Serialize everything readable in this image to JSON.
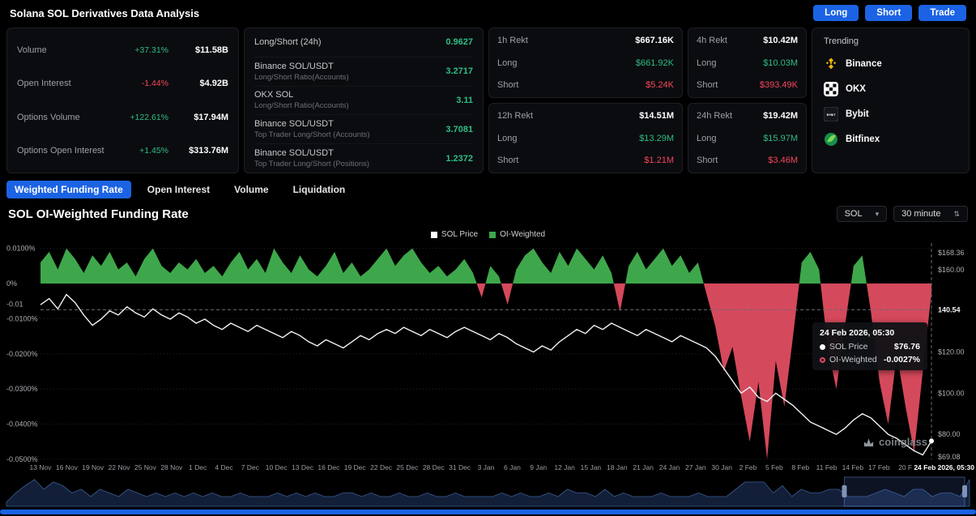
{
  "header": {
    "title": "Solana SOL Derivatives Data Analysis",
    "buttons": [
      {
        "label": "Long"
      },
      {
        "label": "Short"
      },
      {
        "label": "Trade"
      }
    ]
  },
  "stats": {
    "market": [
      {
        "label": "Volume",
        "change": "+37.31%",
        "dir": "up",
        "value": "$11.58B"
      },
      {
        "label": "Open Interest",
        "change": "-1.44%",
        "dir": "down",
        "value": "$4.92B"
      },
      {
        "label": "Options Volume",
        "change": "+122.61%",
        "dir": "up",
        "value": "$17.94M"
      },
      {
        "label": "Options Open Interest",
        "change": "+1.45%",
        "dir": "up",
        "value": "$313.76M"
      }
    ],
    "ratios": [
      {
        "label": "Long/Short (24h)",
        "sub": "",
        "value": "0.9627"
      },
      {
        "label": "Binance SOL/USDT",
        "sub": "Long/Short Ratio(Accounts)",
        "value": "3.2717"
      },
      {
        "label": "OKX SOL",
        "sub": "Long/Short Ratio(Accounts)",
        "value": "3.11"
      },
      {
        "label": "Binance SOL/USDT",
        "sub": "Top Trader Long/Short (Accounts)",
        "value": "3.7081"
      },
      {
        "label": "Binance SOL/USDT",
        "sub": "Top Trader Long/Short (Positions)",
        "value": "1.2372"
      }
    ],
    "rekt_labels": {
      "long": "Long",
      "short": "Short"
    },
    "rekt": [
      {
        "title": "1h Rekt",
        "total": "$667.16K",
        "long": "$661.92K",
        "short": "$5.24K"
      },
      {
        "title": "12h Rekt",
        "total": "$14.51M",
        "long": "$13.29M",
        "short": "$1.21M"
      },
      {
        "title": "4h Rekt",
        "total": "$10.42M",
        "long": "$10.03M",
        "short": "$393.49K"
      },
      {
        "title": "24h Rekt",
        "total": "$19.42M",
        "long": "$15.97M",
        "short": "$3.46M"
      }
    ],
    "trending": {
      "title": "Trending",
      "items": [
        {
          "name": "Binance"
        },
        {
          "name": "OKX"
        },
        {
          "name": "Bybit"
        },
        {
          "name": "Bitfinex"
        }
      ]
    }
  },
  "tabs": [
    {
      "label": "Weighted Funding Rate",
      "active": true
    },
    {
      "label": "Open Interest",
      "active": false
    },
    {
      "label": "Volume",
      "active": false
    },
    {
      "label": "Liquidation",
      "active": false
    }
  ],
  "section": {
    "title": "SOL OI-Weighted Funding Rate",
    "symbol_select": "SOL",
    "interval_select": "30 minute"
  },
  "legend": [
    {
      "label": "SOL Price",
      "color": "#ffffff"
    },
    {
      "label": "OI-Weighted",
      "color": "#3fa74b"
    }
  ],
  "tooltip": {
    "date": "24 Feb 2026, 05:30",
    "rows": [
      {
        "label": "SOL Price",
        "value": "$76.76",
        "color": "#ffffff",
        "hollow": false
      },
      {
        "label": "OI-Weighted",
        "value": "-0.0027%",
        "color": "#e8475f",
        "hollow": true
      }
    ]
  },
  "watermark": "coinglass",
  "colors": {
    "accent_blue": "#1b63e4",
    "green_text": "#2ebd85",
    "red_text": "#f6465d",
    "chart_green": "#3fa74b",
    "chart_red": "#d5495c",
    "price_line": "#f2f2f2"
  },
  "chart_data": {
    "type": "line+area",
    "title": "SOL OI-Weighted Funding Rate",
    "interval": "30 minute",
    "symbol": "SOL",
    "ylim_left_pct": [
      -0.05,
      0.01
    ],
    "ylim_right_usd": [
      69.08,
      168.36
    ],
    "grid": true,
    "legend_position": "top-center",
    "x_tick_labels": [
      "13 Nov",
      "16 Nov",
      "19 Nov",
      "22 Nov",
      "25 Nov",
      "28 Nov",
      "1 Dec",
      "4 Dec",
      "7 Dec",
      "10 Dec",
      "13 Dec",
      "16 Dec",
      "19 Dec",
      "22 Dec",
      "25 Dec",
      "28 Dec",
      "31 Dec",
      "3 Jan",
      "6 Jan",
      "9 Jan",
      "12 Jan",
      "15 Jan",
      "18 Jan",
      "21 Jan",
      "24 Jan",
      "27 Jan",
      "30 Jan",
      "2 Feb",
      "5 Feb",
      "8 Feb",
      "11 Feb",
      "14 Feb",
      "17 Feb",
      "20 F",
      "24 Feb 2026, 05:30"
    ],
    "y_left_tick_values": [
      0.01,
      0,
      -0.01,
      -0.02,
      -0.03,
      -0.04,
      -0.05
    ],
    "y_left_tick_labels": [
      "0.0100%",
      "0%",
      "-0.0100%",
      "-0.0200%",
      "-0.0300%",
      "-0.0400%",
      "-0.0500%"
    ],
    "y_right_ticks": [
      {
        "label": "$168.36",
        "value": 168.36
      },
      {
        "label": "$160.00",
        "value": 160
      },
      {
        "label": "$120.00",
        "value": 120
      },
      {
        "label": "$100.00",
        "value": 100
      },
      {
        "label": "$80.00",
        "value": 80
      },
      {
        "label": "$69.08",
        "value": 69.08
      }
    ],
    "current_markers": {
      "funding_label": "-0.01",
      "price_label": "140.54",
      "price_value": 140.54
    },
    "series": [
      {
        "name": "SOL Price",
        "type": "line",
        "color": "#f2f2f2",
        "values": [
          143,
          146,
          141,
          148,
          144,
          138,
          133,
          136,
          140,
          138,
          142,
          139,
          137,
          141,
          138,
          136,
          139,
          137,
          134,
          136,
          133,
          131,
          134,
          132,
          130,
          133,
          131,
          129,
          127,
          130,
          128,
          125,
          123,
          126,
          124,
          122,
          125,
          128,
          126,
          129,
          131,
          129,
          132,
          130,
          128,
          131,
          129,
          127,
          130,
          132,
          130,
          128,
          126,
          129,
          127,
          124,
          122,
          120,
          123,
          121,
          125,
          128,
          131,
          129,
          133,
          131,
          134,
          132,
          130,
          128,
          131,
          129,
          127,
          125,
          128,
          126,
          124,
          122,
          118,
          112,
          106,
          100,
          103,
          98,
          96,
          100,
          97,
          94,
          90,
          86,
          84,
          82,
          80,
          83,
          87,
          90,
          88,
          84,
          80,
          78,
          75,
          72,
          70,
          76.76
        ]
      },
      {
        "name": "OI-Weighted",
        "type": "area",
        "pos_color": "#3fa74b",
        "neg_color": "#d5495c",
        "values": [
          0.006,
          0.009,
          0.004,
          0.01,
          0.007,
          0.003,
          0.008,
          0.005,
          0.009,
          0.004,
          0.006,
          0.002,
          0.007,
          0.01,
          0.005,
          0.003,
          0.006,
          0.004,
          0.007,
          0.003,
          0.005,
          0.002,
          0.006,
          0.009,
          0.004,
          0.007,
          0.003,
          0.01,
          0.006,
          0.003,
          0.008,
          0.004,
          0.002,
          0.005,
          0.009,
          0.003,
          0.006,
          0.002,
          0.004,
          0.007,
          0.01,
          0.005,
          0.008,
          0.01,
          0.006,
          0.003,
          0.005,
          0.002,
          0.004,
          0.007,
          0.003,
          -0.004,
          0.005,
          0.002,
          -0.006,
          0.004,
          0.008,
          0.01,
          0.006,
          0.003,
          0.009,
          0.005,
          0.01,
          0.007,
          0.004,
          0.008,
          0.003,
          -0.008,
          0.005,
          0.009,
          0.004,
          0.007,
          0.01,
          0.005,
          0.008,
          0.003,
          0.006,
          -0.003,
          -0.012,
          -0.025,
          -0.018,
          -0.032,
          -0.045,
          -0.028,
          -0.05,
          -0.022,
          -0.035,
          -0.015,
          0.006,
          0.009,
          0.004,
          -0.018,
          -0.03,
          -0.012,
          0.005,
          0.008,
          -0.008,
          -0.028,
          -0.04,
          -0.02,
          -0.035,
          -0.048,
          -0.025,
          -0.0027
        ]
      }
    ],
    "last_point": {
      "date": "24 Feb 2026, 05:30",
      "price": 76.76,
      "funding_pct": -0.0027
    },
    "navigator": {
      "selection_start_frac": 0.87,
      "selection_end_frac": 0.995
    }
  }
}
